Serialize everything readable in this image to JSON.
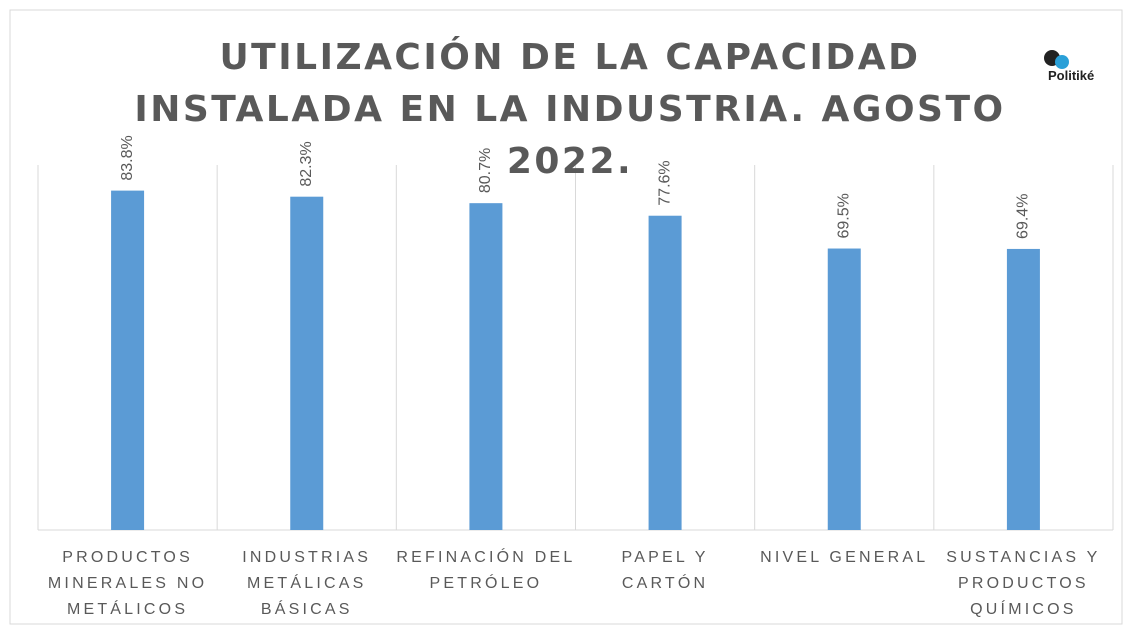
{
  "chart_data": {
    "type": "bar",
    "title": "UTILIZACIÓN DE LA CAPACIDAD INSTALADA EN LA INDUSTRIA. AGOSTO 2022.",
    "logo": "Politiké",
    "categories": [
      "PRODUCTOS MINERALES NO METÁLICOS",
      "INDUSTRIAS METÁLICAS BÁSICAS",
      "REFINACIÓN DEL PETRÓLEO",
      "PAPEL Y CARTÓN",
      "NIVEL GENERAL",
      "SUSTANCIAS Y PRODUCTOS QUÍMICOS"
    ],
    "values": [
      83.8,
      82.3,
      80.7,
      77.6,
      69.5,
      69.4
    ],
    "value_labels": [
      "83.8%",
      "82.3%",
      "80.7%",
      "77.6%",
      "69.5%",
      "69.4%"
    ],
    "color": "#5b9bd5",
    "ylim": [
      0,
      100
    ]
  }
}
